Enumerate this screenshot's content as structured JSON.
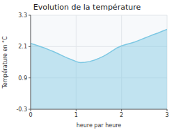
{
  "chart_data": {
    "type": "area",
    "title": "Evolution de la température",
    "x_label": "heure par heure",
    "y_label": "Température en °C",
    "x": [
      0,
      0.1,
      0.2,
      0.3,
      0.4,
      0.5,
      0.6,
      0.7,
      0.8,
      0.9,
      1.0,
      1.05,
      1.1,
      1.2,
      1.3,
      1.4,
      1.5,
      1.6,
      1.7,
      1.8,
      1.9,
      2.0,
      2.1,
      2.2,
      2.3,
      2.4,
      2.5,
      2.6,
      2.7,
      2.8,
      2.9,
      3.0
    ],
    "values": [
      2.22,
      2.17,
      2.11,
      2.05,
      1.98,
      1.91,
      1.83,
      1.75,
      1.67,
      1.6,
      1.53,
      1.5,
      1.49,
      1.5,
      1.53,
      1.58,
      1.65,
      1.73,
      1.83,
      1.94,
      2.05,
      2.13,
      2.18,
      2.23,
      2.28,
      2.35,
      2.42,
      2.49,
      2.56,
      2.62,
      2.69,
      2.76
    ],
    "color": "#7ec8e3",
    "xlim": [
      0,
      3
    ],
    "ylim": [
      -0.3,
      3.3
    ],
    "xticks": [
      0,
      1,
      2,
      3
    ],
    "yticks": [
      -0.3,
      0.9,
      2.1,
      3.3
    ],
    "grid": true
  }
}
